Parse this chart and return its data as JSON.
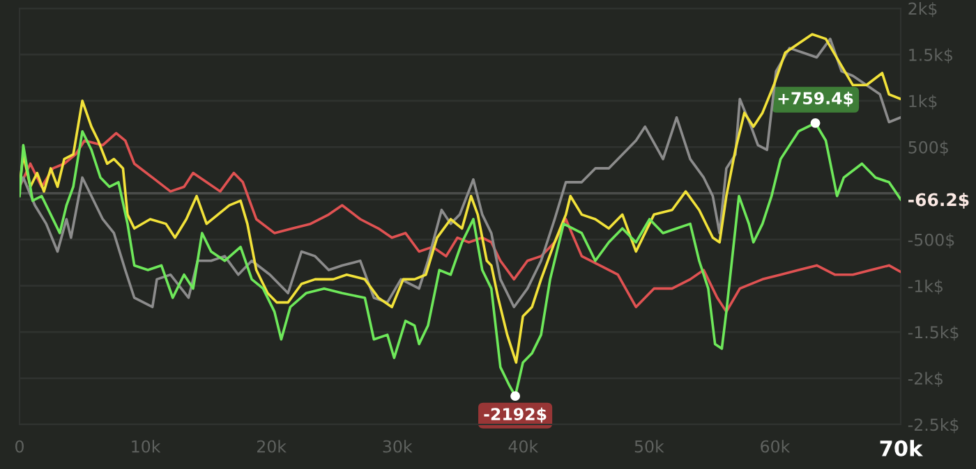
{
  "chart_data": {
    "type": "line",
    "xlim": [
      0,
      70000
    ],
    "ylim": [
      -2500,
      2000
    ],
    "xticks": [
      {
        "value": 0,
        "label": "0"
      },
      {
        "value": 10000,
        "label": "10k"
      },
      {
        "value": 20000,
        "label": "20k"
      },
      {
        "value": 30000,
        "label": "30k"
      },
      {
        "value": 40000,
        "label": "40k"
      },
      {
        "value": 50000,
        "label": "50k"
      },
      {
        "value": 60000,
        "label": "60k"
      },
      {
        "value": 70000,
        "label": "70k"
      }
    ],
    "yticks": [
      {
        "value": 2000,
        "label": "2k$"
      },
      {
        "value": 1500,
        "label": "1.5k$"
      },
      {
        "value": 1000,
        "label": "1k$"
      },
      {
        "value": 500,
        "label": "500$"
      },
      {
        "value": -66.2,
        "label": "-66.2$"
      },
      {
        "value": -500,
        "label": "-500$"
      },
      {
        "value": -1000,
        "label": "-1k$"
      },
      {
        "value": -1500,
        "label": "-1.5k$"
      },
      {
        "value": -2000,
        "label": "-2k$"
      },
      {
        "value": -2500,
        "label": "-2.5k$"
      }
    ],
    "grid": "y",
    "legend": false,
    "marker": "none",
    "line_style": "solid",
    "ref_lines": [
      {
        "axis": "y",
        "value": 0,
        "label": null,
        "color": "#4a4c4a"
      }
    ],
    "annotations": [
      {
        "text": "+759.4$",
        "x": 63220,
        "y": 759.4
      },
      {
        "text": "-2192$",
        "x": 39380,
        "y": -2192
      }
    ],
    "series": [
      {
        "color": "#e05252",
        "x": [
          0,
          860,
          1760,
          2660,
          3550,
          4450,
          5170,
          6610,
          7680,
          8400,
          9120,
          10560,
          11990,
          13070,
          13790,
          14860,
          15940,
          17020,
          17740,
          18810,
          20250,
          21680,
          23120,
          24560,
          25630,
          27070,
          28510,
          29580,
          30660,
          31740,
          32810,
          33890,
          34790,
          35690,
          36760,
          37480,
          38200,
          39280,
          40350,
          41430,
          42510,
          43400,
          44660,
          46100,
          47530,
          48970,
          50400,
          51840,
          53280,
          54350,
          55430,
          56150,
          57220,
          59020,
          60460,
          61890,
          63330,
          64760,
          66200,
          67640,
          69070,
          70000
        ],
        "values": [
          70,
          320,
          70,
          270,
          320,
          420,
          570,
          520,
          650,
          570,
          320,
          170,
          20,
          70,
          220,
          120,
          20,
          220,
          120,
          -280,
          -430,
          -380,
          -330,
          -230,
          -130,
          -280,
          -380,
          -480,
          -430,
          -630,
          -580,
          -680,
          -480,
          -530,
          -480,
          -530,
          -730,
          -930,
          -730,
          -680,
          -530,
          -280,
          -680,
          -780,
          -880,
          -1230,
          -1030,
          -1030,
          -930,
          -830,
          -1130,
          -1280,
          -1030,
          -930,
          -880,
          -830,
          -780,
          -880,
          -880,
          -830,
          -780,
          -850
        ]
      },
      {
        "color": "#8c8c8c",
        "x": [
          0,
          300,
          1220,
          2120,
          3020,
          3730,
          4090,
          4990,
          5710,
          6610,
          7500,
          8400,
          9120,
          10560,
          10910,
          11990,
          13430,
          14150,
          15220,
          16300,
          17380,
          18450,
          19890,
          21330,
          22400,
          23480,
          24560,
          25630,
          27070,
          28150,
          29220,
          30300,
          31740,
          32450,
          33530,
          34250,
          34970,
          36050,
          36760,
          37480,
          38200,
          39280,
          40350,
          41430,
          42510,
          43400,
          44660,
          45740,
          46810,
          47890,
          48970,
          49690,
          51120,
          52200,
          53280,
          54350,
          55070,
          55610,
          56150,
          56870,
          57220,
          58120,
          58660,
          59380,
          60100,
          61170,
          62250,
          63330,
          64400,
          65300,
          66200,
          67280,
          68350,
          69070,
          70000
        ],
        "values": [
          70,
          170,
          -130,
          -330,
          -630,
          -280,
          -480,
          170,
          -30,
          -280,
          -430,
          -830,
          -1130,
          -1230,
          -930,
          -880,
          -1130,
          -730,
          -730,
          -680,
          -880,
          -730,
          -880,
          -1080,
          -630,
          -680,
          -830,
          -780,
          -730,
          -1130,
          -1180,
          -930,
          -1030,
          -730,
          -180,
          -330,
          -230,
          150,
          -230,
          -430,
          -930,
          -1230,
          -1030,
          -730,
          -280,
          120,
          120,
          270,
          270,
          420,
          570,
          720,
          370,
          820,
          370,
          170,
          -30,
          -430,
          270,
          420,
          1020,
          720,
          520,
          470,
          1320,
          1570,
          1520,
          1470,
          1670,
          1320,
          1270,
          1170,
          1070,
          770,
          820
        ]
      },
      {
        "color": "#f2e23a",
        "x": [
          0,
          300,
          860,
          1400,
          1940,
          2480,
          3020,
          3550,
          4270,
          4990,
          5710,
          6250,
          6965,
          7500,
          8220,
          8580,
          9120,
          10380,
          11630,
          12350,
          13250,
          14070,
          14860,
          15760,
          16660,
          17560,
          18100,
          18810,
          19710,
          20430,
          21330,
          22400,
          23480,
          24920,
          25990,
          27430,
          28510,
          29580,
          30480,
          31380,
          32280,
          33170,
          34250,
          35150,
          35870,
          36400,
          37120,
          37480,
          38020,
          38740,
          39450,
          39990,
          40710,
          41430,
          42510,
          43400,
          43760,
          44660,
          45740,
          46810,
          47890,
          48970,
          50400,
          51840,
          52920,
          53990,
          55070,
          55610,
          56150,
          56870,
          57580,
          58300,
          59020,
          59920,
          60820,
          61890,
          62970,
          64050,
          65120,
          66200,
          67280,
          68530,
          69070,
          70000
        ],
        "values": [
          70,
          420,
          70,
          220,
          20,
          270,
          70,
          370,
          420,
          1000,
          720,
          570,
          320,
          370,
          270,
          -230,
          -380,
          -280,
          -330,
          -480,
          -280,
          -30,
          -330,
          -230,
          -130,
          -80,
          -330,
          -830,
          -1080,
          -1180,
          -1180,
          -980,
          -930,
          -930,
          -880,
          -930,
          -1130,
          -1230,
          -930,
          -930,
          -880,
          -480,
          -280,
          -380,
          -30,
          -230,
          -730,
          -780,
          -1130,
          -1530,
          -1830,
          -1330,
          -1230,
          -930,
          -530,
          -230,
          -30,
          -230,
          -280,
          -380,
          -230,
          -630,
          -230,
          -180,
          20,
          -180,
          -480,
          -530,
          -30,
          470,
          870,
          720,
          870,
          1170,
          1520,
          1620,
          1720,
          1670,
          1420,
          1170,
          1170,
          1300,
          1070,
          1020
        ]
      },
      {
        "color": "#6ee85a",
        "x": [
          0,
          300,
          1040,
          1760,
          2480,
          3200,
          3730,
          4270,
          4990,
          5710,
          6430,
          7145,
          7860,
          8580,
          9120,
          10200,
          11270,
          12170,
          13070,
          13790,
          14500,
          15220,
          16300,
          17560,
          18450,
          19350,
          20250,
          20790,
          21510,
          22760,
          24200,
          25630,
          27430,
          28150,
          29220,
          29760,
          30660,
          31380,
          31740,
          32450,
          33350,
          34250,
          35150,
          36050,
          36760,
          37480,
          38200,
          38920,
          39380,
          39990,
          40710,
          41430,
          42150,
          43220,
          44660,
          45740,
          46810,
          47890,
          48970,
          50050,
          51120,
          52200,
          53280,
          53990,
          54710,
          55250,
          55790,
          56150,
          57150,
          57940,
          58300,
          59020,
          59740,
          60460,
          61890,
          63220,
          64050,
          64940,
          65480,
          66920,
          68000,
          69070,
          70000
        ],
        "values": [
          -30,
          520,
          -80,
          -30,
          -230,
          -430,
          -130,
          70,
          670,
          470,
          170,
          70,
          120,
          -330,
          -780,
          -830,
          -780,
          -1130,
          -880,
          -1030,
          -430,
          -630,
          -730,
          -580,
          -930,
          -1030,
          -1280,
          -1580,
          -1230,
          -1080,
          -1030,
          -1080,
          -1130,
          -1580,
          -1530,
          -1780,
          -1380,
          -1430,
          -1630,
          -1430,
          -830,
          -880,
          -530,
          -280,
          -830,
          -1030,
          -1880,
          -2080,
          -2192,
          -1830,
          -1730,
          -1530,
          -930,
          -330,
          -430,
          -730,
          -530,
          -380,
          -530,
          -280,
          -430,
          -380,
          -330,
          -730,
          -1030,
          -1630,
          -1680,
          -1280,
          -30,
          -330,
          -530,
          -330,
          -30,
          370,
          670,
          759.4,
          570,
          -30,
          170,
          320,
          170,
          120,
          -66.2
        ]
      }
    ]
  }
}
